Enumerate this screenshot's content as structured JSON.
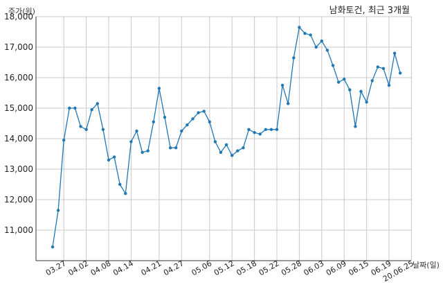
{
  "chart_data": {
    "type": "line",
    "title": "남화토건, 최근 3개월",
    "xlabel": "날짜(일)",
    "ylabel": "주가(원)",
    "ylim": [
      10000,
      18000
    ],
    "yticks": [
      11000,
      12000,
      13000,
      14000,
      15000,
      16000,
      17000,
      18000
    ],
    "ytick_labels": [
      "11,000",
      "12,000",
      "13,000",
      "14,000",
      "15,000",
      "16,000",
      "17,000",
      "18,000"
    ],
    "xtick_labels": [
      "03.27",
      "04.02",
      "04.08",
      "04.14",
      "04.21",
      "04.27",
      "05.06",
      "05.12",
      "05.18",
      "05.22",
      "05.28",
      "06.03",
      "06.09",
      "06.15",
      "06.19",
      "20.06.25"
    ],
    "xtick_index": [
      2,
      6,
      10,
      14,
      19,
      23,
      28,
      32,
      36,
      40,
      44,
      48,
      52,
      56,
      60,
      64
    ],
    "grid": true,
    "colors": {
      "line": "#1f77b4",
      "grid": "#c8c8c8"
    },
    "series": [
      {
        "values": [
          10450,
          11650,
          13950,
          15000,
          15000,
          14400,
          14300,
          14950,
          15150,
          14300,
          13300,
          13400,
          12500,
          12200,
          13900,
          14250,
          13550,
          13600,
          14550,
          15650,
          14700,
          13700,
          13700,
          14250,
          14450,
          14650,
          14850,
          14900,
          14550,
          13900,
          13550,
          13800,
          13450,
          13600,
          13700,
          14300,
          14200,
          14150,
          14300,
          14300,
          14300,
          15750,
          15150,
          16650,
          17650,
          17450,
          17400,
          17000,
          17200,
          16900,
          16400,
          15850,
          15950,
          15600,
          14400,
          15550,
          15200,
          15900,
          16350,
          16300,
          15750,
          16800,
          16150
        ]
      }
    ]
  }
}
